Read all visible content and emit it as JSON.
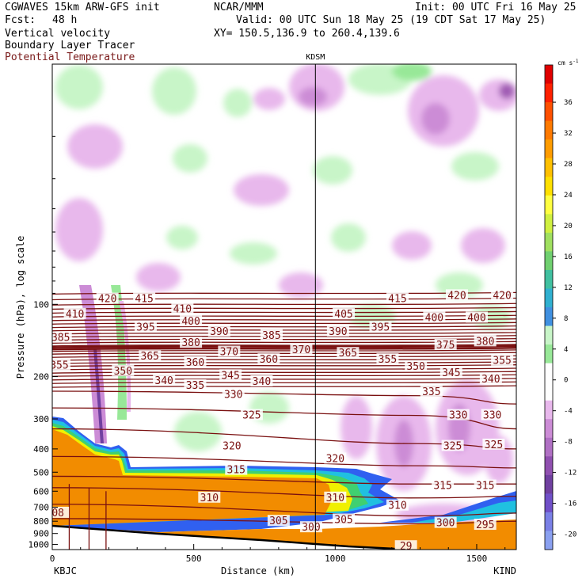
{
  "header": {
    "model": "CGWAVES 15km ARW-GFS init",
    "center": "NCAR/MMM",
    "init": "Init: 00 UTC Fri 16 May 25",
    "fcst_label": "Fcst:",
    "fcst_value": "48 h",
    "valid": "Valid: 00 UTC Sun 18 May 25 (19 CDT Sat 17 May 25)",
    "field1": "Vertical velocity",
    "field2": "Boundary Layer Tracer",
    "field3": "Potential Temperature",
    "xy": "XY= 150.5,136.9 to 260.4,139.6"
  },
  "colors": {
    "theta": "#7a1010",
    "land": "#f28c00",
    "up": [
      "#c8f5c8",
      "#98e898"
    ],
    "down": [
      "#e8b8ec",
      "#cc8cd6",
      "#a05cb4"
    ]
  },
  "chart_data": {
    "type": "heatmap",
    "title": "",
    "xlabel": "Distance (km)",
    "ylabel": "Pressure (hPa), log scale",
    "x_ticks": [
      0,
      500,
      1000,
      1500
    ],
    "xlim": [
      0,
      1640
    ],
    "y_ticks": [
      100,
      200,
      300,
      400,
      500,
      600,
      700,
      800,
      900,
      1000
    ],
    "ylim": [
      1050,
      10
    ],
    "y_scale": "log",
    "left_station": "KBJC",
    "right_station": "KIND",
    "mid_station": "KDSM",
    "mid_station_km": 930,
    "colorbar": {
      "unit": "cm s",
      "unit_exp": "-1",
      "ticks": [
        36,
        32,
        28,
        24,
        20,
        16,
        12,
        8,
        4,
        0,
        -4,
        -8,
        -12,
        -16,
        -20
      ],
      "colors": [
        "#e00000",
        "#ff2000",
        "#ff5000",
        "#ff7a00",
        "#ff9c00",
        "#ffc000",
        "#ffe000",
        "#ffff40",
        "#d0f040",
        "#a0e060",
        "#70d070",
        "#40c0a0",
        "#30b0d0",
        "#4090e0",
        "#c8f5c8",
        "#98e898",
        "#ffffff",
        "#ffffff",
        "#e8b8ec",
        "#cc8cd6",
        "#b070c4",
        "#9050b0",
        "#7040a0",
        "#7050c8",
        "#7a80e6",
        "#8aa0f0"
      ]
    },
    "theta_labels": [
      {
        "label": "420",
        "x": 195,
        "p": 95
      },
      {
        "label": "415",
        "x": 325,
        "p": 95
      },
      {
        "label": "410",
        "x": 460,
        "p": 105
      },
      {
        "label": "415",
        "x": 1220,
        "p": 95
      },
      {
        "label": "420",
        "x": 1430,
        "p": 92
      },
      {
        "label": "420",
        "x": 1590,
        "p": 92
      },
      {
        "label": "410",
        "x": 80,
        "p": 110
      },
      {
        "label": "405",
        "x": 1030,
        "p": 110
      },
      {
        "label": "400",
        "x": 490,
        "p": 118
      },
      {
        "label": "400",
        "x": 1350,
        "p": 114
      },
      {
        "label": "400",
        "x": 1500,
        "p": 114
      },
      {
        "label": "395",
        "x": 330,
        "p": 125
      },
      {
        "label": "395",
        "x": 1160,
        "p": 125
      },
      {
        "label": "390",
        "x": 590,
        "p": 130
      },
      {
        "label": "390",
        "x": 1010,
        "p": 130
      },
      {
        "label": "385",
        "x": 30,
        "p": 138
      },
      {
        "label": "385",
        "x": 775,
        "p": 135
      },
      {
        "label": "380",
        "x": 490,
        "p": 145
      },
      {
        "label": "380",
        "x": 1530,
        "p": 143
      },
      {
        "label": "375",
        "x": 1390,
        "p": 148
      },
      {
        "label": "370",
        "x": 625,
        "p": 158
      },
      {
        "label": "370",
        "x": 880,
        "p": 155
      },
      {
        "label": "365",
        "x": 345,
        "p": 165
      },
      {
        "label": "365",
        "x": 1045,
        "p": 160
      },
      {
        "label": "360",
        "x": 505,
        "p": 175
      },
      {
        "label": "360",
        "x": 765,
        "p": 170
      },
      {
        "label": "355",
        "x": 25,
        "p": 180
      },
      {
        "label": "355",
        "x": 1185,
        "p": 170
      },
      {
        "label": "355",
        "x": 1590,
        "p": 172
      },
      {
        "label": "350",
        "x": 250,
        "p": 190
      },
      {
        "label": "350",
        "x": 1285,
        "p": 182
      },
      {
        "label": "345",
        "x": 630,
        "p": 198
      },
      {
        "label": "345",
        "x": 1410,
        "p": 193
      },
      {
        "label": "340",
        "x": 395,
        "p": 208
      },
      {
        "label": "340",
        "x": 740,
        "p": 210
      },
      {
        "label": "340",
        "x": 1550,
        "p": 205
      },
      {
        "label": "335",
        "x": 505,
        "p": 218
      },
      {
        "label": "335",
        "x": 1340,
        "p": 232
      },
      {
        "label": "330",
        "x": 640,
        "p": 238
      },
      {
        "label": "330",
        "x": 1435,
        "p": 290
      },
      {
        "label": "330",
        "x": 1555,
        "p": 290
      },
      {
        "label": "325",
        "x": 705,
        "p": 290
      },
      {
        "label": "325",
        "x": 1415,
        "p": 390
      },
      {
        "label": "325",
        "x": 1560,
        "p": 385
      },
      {
        "label": "320",
        "x": 635,
        "p": 390
      },
      {
        "label": "320",
        "x": 1000,
        "p": 440
      },
      {
        "label": "315",
        "x": 650,
        "p": 490
      },
      {
        "label": "315",
        "x": 1380,
        "p": 570
      },
      {
        "label": "315",
        "x": 1530,
        "p": 570
      },
      {
        "label": "310",
        "x": 555,
        "p": 640
      },
      {
        "label": "310",
        "x": 1000,
        "p": 640
      },
      {
        "label": "310",
        "x": 1220,
        "p": 690
      },
      {
        "label": "305",
        "x": 800,
        "p": 800
      },
      {
        "label": "305",
        "x": 1030,
        "p": 790
      },
      {
        "label": "300",
        "x": 915,
        "p": 850
      },
      {
        "label": "300",
        "x": 1390,
        "p": 815
      },
      {
        "label": "295",
        "x": 1530,
        "p": 830
      },
      {
        "label": "08",
        "x": 20,
        "p": 740
      },
      {
        "label": "29",
        "x": 1250,
        "p": 1020
      }
    ]
  }
}
